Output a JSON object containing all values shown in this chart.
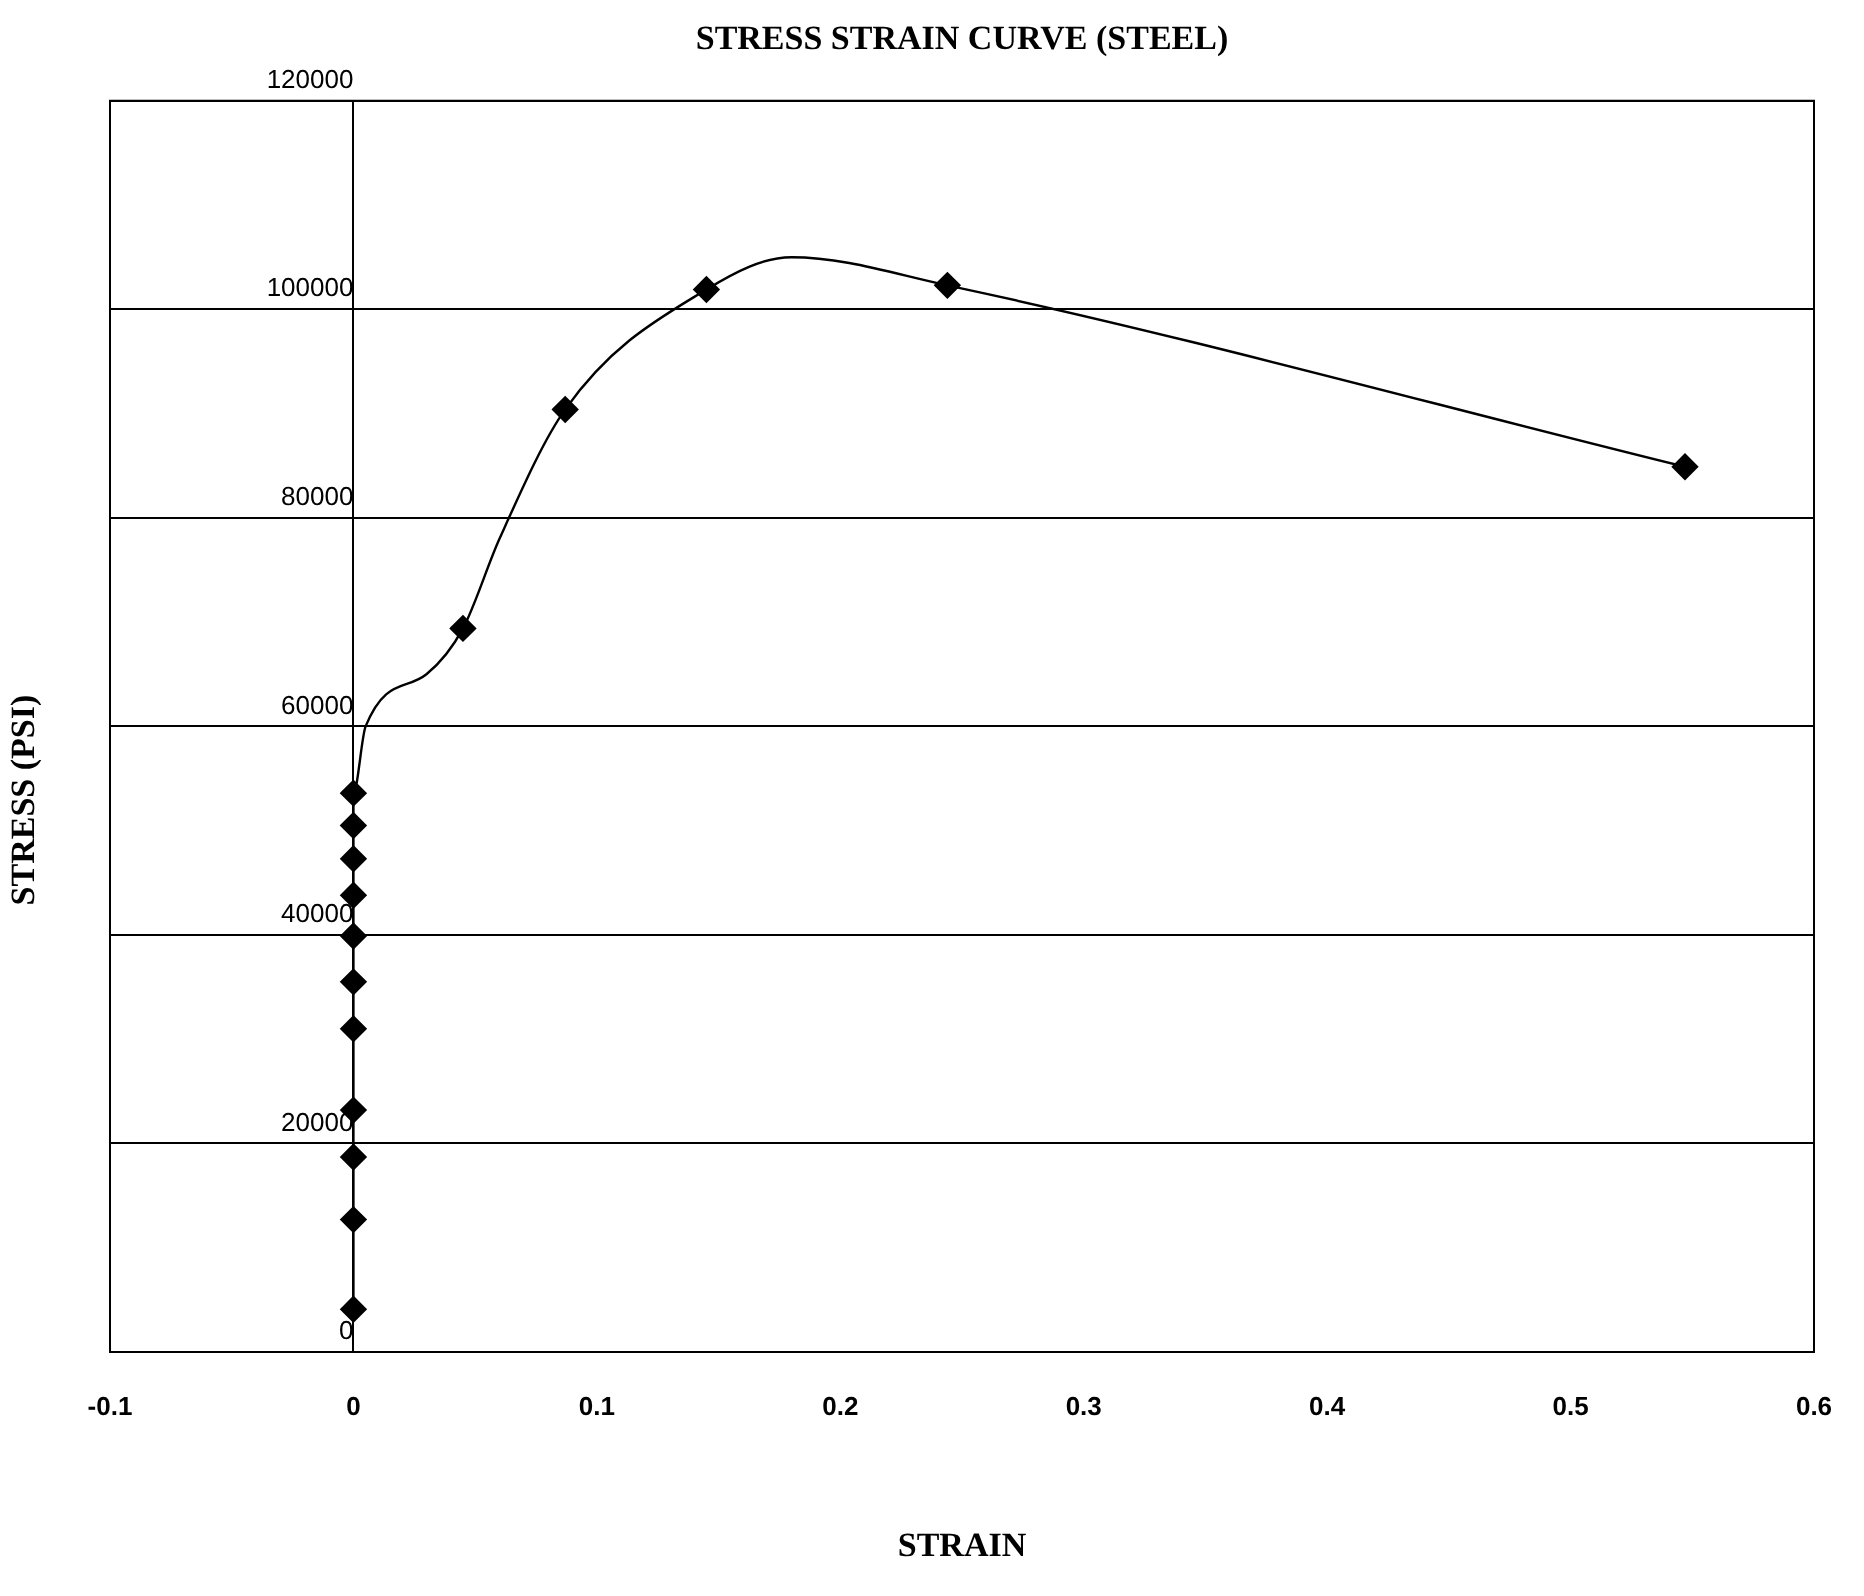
{
  "chart_data": {
    "type": "scatter",
    "title": "STRESS STRAIN CURVE (STEEL)",
    "xlabel": "STRAIN",
    "ylabel": "STRESS (PSI)",
    "xlim": [
      -0.1,
      0.6
    ],
    "xticks": [
      -0.1,
      0,
      0.1,
      0.2,
      0.3,
      0.4,
      0.5,
      0.6
    ],
    "ylim": [
      0,
      120000
    ],
    "yticks": [
      0,
      20000,
      40000,
      60000,
      80000,
      100000,
      120000
    ],
    "grid": "y",
    "legend": false,
    "series": [
      {
        "type": "line",
        "marker": "none",
        "color": "#000000",
        "x": [
          0,
          0,
          0,
          0,
          0,
          0,
          0,
          0,
          0,
          0,
          0,
          0.005,
          0.03,
          0.045,
          0.06,
          0.087,
          0.145,
          0.18,
          0.244,
          0.547
        ],
        "values": [
          4100,
          12700,
          18700,
          23200,
          31000,
          35500,
          39900,
          43800,
          47300,
          50500,
          53600,
          60000,
          65000,
          69400,
          78000,
          90400,
          101900,
          105000,
          102300,
          84900
        ]
      },
      {
        "type": "scatter",
        "marker": "diamond",
        "color": "#000000",
        "x": [
          0,
          0,
          0,
          0,
          0,
          0,
          0,
          0,
          0,
          0,
          0,
          0.045,
          0.087,
          0.145,
          0.244,
          0.547
        ],
        "values": [
          4100,
          12700,
          18700,
          23200,
          31000,
          35500,
          39900,
          43800,
          47300,
          50500,
          53600,
          69400,
          90400,
          101900,
          102300,
          84900
        ]
      }
    ]
  }
}
